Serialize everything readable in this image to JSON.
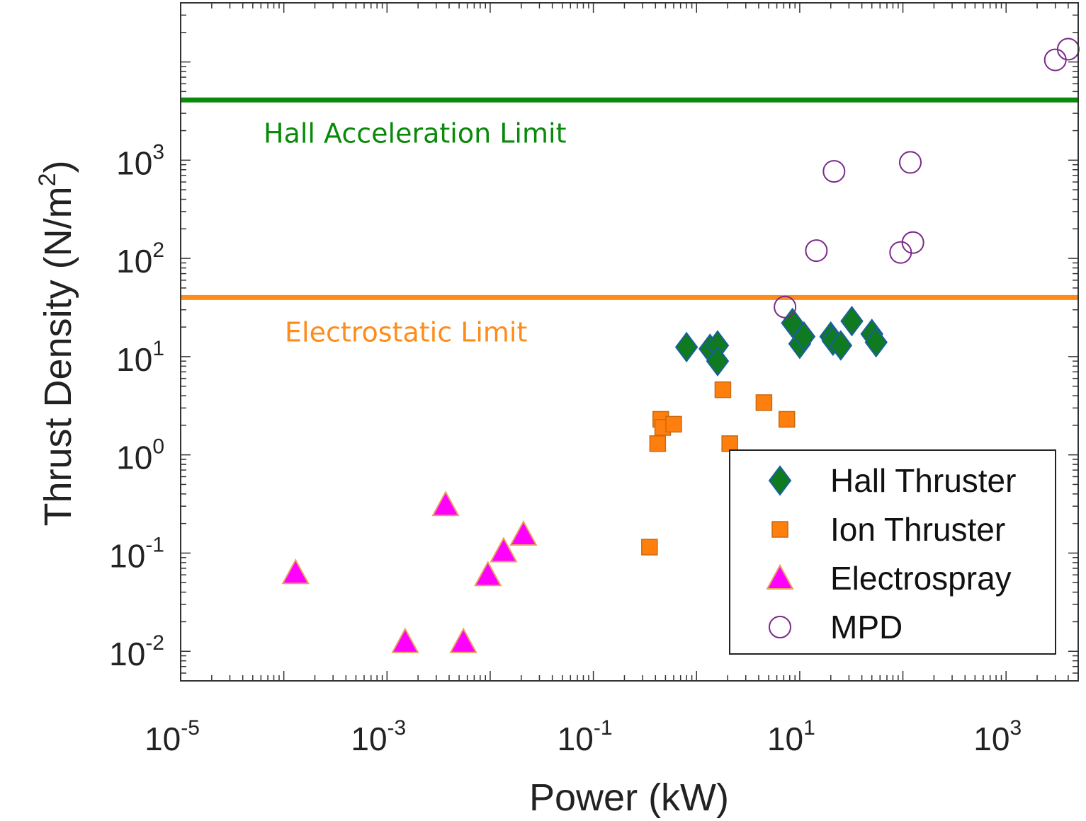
{
  "chart_data": {
    "type": "scatter",
    "xscale": "log",
    "yscale": "log",
    "xlabel": "Power (kW)",
    "ylabel": "Thrust Density (N/m",
    "ylabel_sup": "2",
    "ylabel_close": ")",
    "xlim": [
      1e-05,
      5000
    ],
    "ylim": [
      0.005,
      40000
    ],
    "x_ticks": [
      {
        "base": "10",
        "exp": "-5",
        "value": 1e-05
      },
      {
        "base": "10",
        "exp": "-3",
        "value": 0.001
      },
      {
        "base": "10",
        "exp": "-1",
        "value": 0.1
      },
      {
        "base": "10",
        "exp": "1",
        "value": 10
      },
      {
        "base": "10",
        "exp": "3",
        "value": 1000
      }
    ],
    "y_ticks": [
      {
        "base": "10",
        "exp": "-2",
        "value": 0.01
      },
      {
        "base": "10",
        "exp": "-1",
        "value": 0.1
      },
      {
        "base": "10",
        "exp": "0",
        "value": 1
      },
      {
        "base": "10",
        "exp": "1",
        "value": 10
      },
      {
        "base": "10",
        "exp": "2",
        "value": 100
      },
      {
        "base": "10",
        "exp": "3",
        "value": 1000
      }
    ],
    "limits": [
      {
        "name": "Hall Acceleration Limit",
        "y": 4100,
        "color": "#0a8a0a"
      },
      {
        "name": "Electrostatic Limit",
        "y": 40,
        "color": "#ff8c1a"
      }
    ],
    "series": [
      {
        "name": "Hall Thruster",
        "marker": "diamond",
        "fill": "#0f7a1f",
        "stroke": "#1a5fa0",
        "points": [
          [
            0.8,
            12.5
          ],
          [
            1.35,
            12.0
          ],
          [
            1.6,
            13.0
          ],
          [
            1.6,
            9.0
          ],
          [
            8.5,
            22.0
          ],
          [
            10.0,
            13.5
          ],
          [
            11.0,
            16.0
          ],
          [
            20.0,
            16.0
          ],
          [
            21.0,
            14.5
          ],
          [
            25.0,
            13.0
          ],
          [
            32.0,
            23.0
          ],
          [
            50.0,
            17.0
          ],
          [
            55.0,
            14.0
          ]
        ]
      },
      {
        "name": "Ion Thruster",
        "marker": "square",
        "fill": "#ff7f0e",
        "stroke": "#c96a10",
        "points": [
          [
            0.35,
            0.115
          ],
          [
            0.42,
            1.3
          ],
          [
            0.45,
            2.3
          ],
          [
            0.47,
            1.9
          ],
          [
            0.6,
            2.05
          ],
          [
            1.8,
            4.6
          ],
          [
            2.1,
            1.3
          ],
          [
            4.5,
            3.4
          ],
          [
            7.5,
            2.3
          ]
        ]
      },
      {
        "name": "Electrospray",
        "marker": "triangle",
        "fill": "#ff00ff",
        "stroke": "#e8a060",
        "points": [
          [
            0.00013,
            0.063
          ],
          [
            0.0015,
            0.0125
          ],
          [
            0.0037,
            0.31
          ],
          [
            0.0055,
            0.0125
          ],
          [
            0.0095,
            0.06
          ],
          [
            0.0135,
            0.105
          ],
          [
            0.021,
            0.155
          ]
        ]
      },
      {
        "name": "MPD",
        "marker": "circle-open",
        "fill": "none",
        "stroke": "#7a2a8a",
        "points": [
          [
            7.2,
            32.0
          ],
          [
            14.5,
            120.0
          ],
          [
            21.5,
            770.0
          ],
          [
            95.0,
            115.0
          ],
          [
            118.0,
            950.0
          ],
          [
            125.0,
            145.0
          ],
          [
            3000.0,
            10500.0
          ],
          [
            4000.0,
            13500.0
          ]
        ]
      }
    ]
  }
}
